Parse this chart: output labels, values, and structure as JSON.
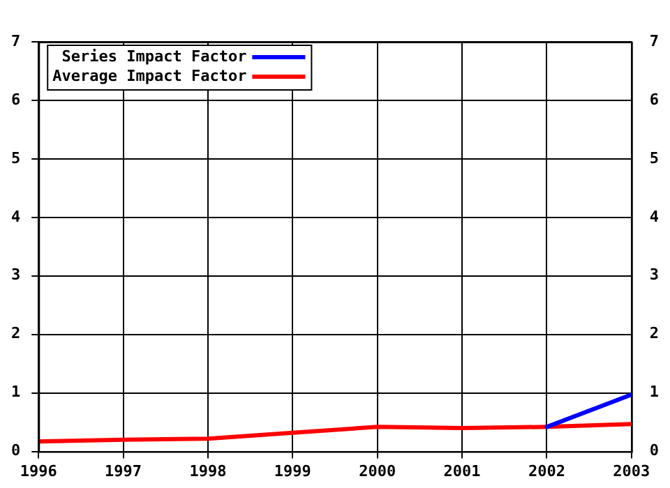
{
  "chart_data": {
    "type": "line",
    "x": [
      1996,
      1997,
      1998,
      1999,
      2000,
      2001,
      2002,
      2003
    ],
    "series": [
      {
        "name": "Series Impact Factor",
        "color": "#0000ff",
        "x": [
          2002,
          2003
        ],
        "values": [
          0.42,
          0.97
        ]
      },
      {
        "name": "Average Impact Factor",
        "color": "#ff0000",
        "values": [
          0.17,
          0.2,
          0.22,
          0.32,
          0.42,
          0.4,
          0.42,
          0.47
        ]
      }
    ],
    "xlim": [
      1996,
      2003
    ],
    "xticks": [
      1996,
      1997,
      1998,
      1999,
      2000,
      2001,
      2002,
      2003
    ],
    "ylim": [
      0,
      7
    ],
    "yticks": [
      0,
      1,
      2,
      3,
      4,
      5,
      6,
      7
    ],
    "y2lim": [
      0,
      7
    ],
    "y2ticks": [
      0,
      1,
      2,
      3,
      4,
      5,
      6,
      7
    ],
    "grid": true,
    "legend": "top left",
    "marker": "none",
    "line_style": "solid"
  }
}
